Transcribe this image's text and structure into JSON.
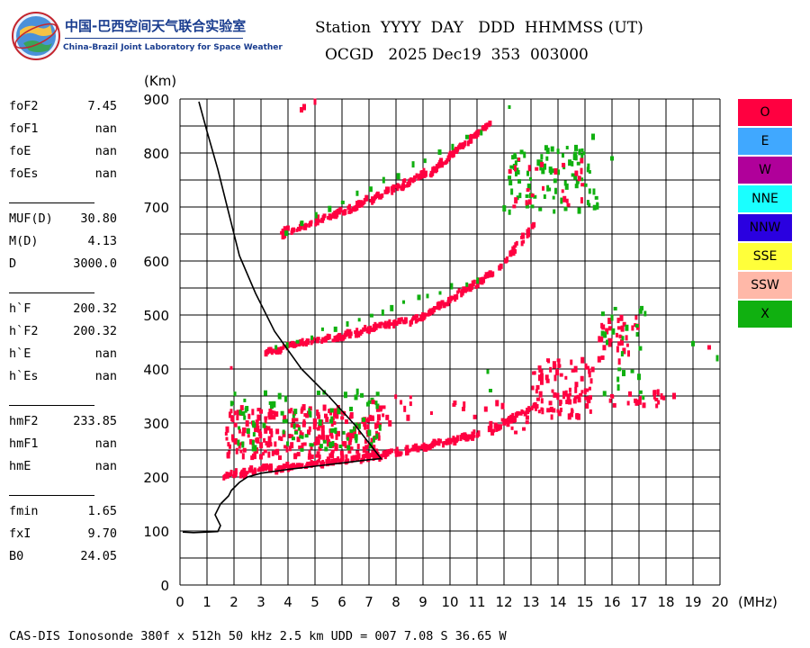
{
  "logo": {
    "cn": "中国-巴西空间天气联合实验室",
    "en": "China-Brazil Joint Laboratory for Space Weather"
  },
  "header": {
    "line1": "Station  YYYY  DAY   DDD  HHMMSS (UT)",
    "line2": "OCGD   2025 Dec19  353  003000"
  },
  "params": [
    {
      "name": "foF2",
      "value": "7.45"
    },
    {
      "name": "foF1",
      "value": "nan"
    },
    {
      "name": "foE",
      "value": "nan"
    },
    {
      "name": "foEs",
      "value": "nan"
    },
    {
      "name": "MUF(D)",
      "value": "30.80"
    },
    {
      "name": "M(D)",
      "value": "4.13"
    },
    {
      "name": "D",
      "value": "3000.0"
    },
    {
      "name": "h`F",
      "value": "200.32"
    },
    {
      "name": "h`F2",
      "value": "200.32"
    },
    {
      "name": "h`E",
      "value": "nan"
    },
    {
      "name": "h`Es",
      "value": "nan"
    },
    {
      "name": "hmF2",
      "value": "233.85"
    },
    {
      "name": "hmF1",
      "value": "nan"
    },
    {
      "name": "hmE",
      "value": "nan"
    },
    {
      "name": "fmin",
      "value": "1.65"
    },
    {
      "name": "fxI",
      "value": "9.70"
    },
    {
      "name": "B0",
      "value": "24.05"
    }
  ],
  "legend": [
    {
      "label": "O",
      "color": "#ff0040"
    },
    {
      "label": "E",
      "color": "#40a8ff"
    },
    {
      "label": "W",
      "color": "#b0009a"
    },
    {
      "label": "NNE",
      "color": "#1affff"
    },
    {
      "label": "NNW",
      "color": "#2a00e0"
    },
    {
      "label": "SSE",
      "color": "#ffff3a"
    },
    {
      "label": "SSW",
      "color": "#ffb8a8"
    },
    {
      "label": "X",
      "color": "#10b010"
    }
  ],
  "footer": "CAS-DIS Ionosonde 380f x 512h 50 kHz 2.5 km UDD = 007 7.08 S 36.65 W",
  "chart_data": {
    "type": "scatter",
    "xlabel": "(MHz)",
    "ylabel": "(Km)",
    "xlim": [
      0,
      20
    ],
    "ylim": [
      0,
      900
    ],
    "x_ticks": [
      0,
      1,
      2,
      3,
      4,
      5,
      6,
      7,
      8,
      9,
      10,
      11,
      12,
      13,
      14,
      15,
      16,
      17,
      18,
      19,
      20
    ],
    "y_ticks": [
      0,
      100,
      200,
      300,
      400,
      500,
      600,
      700,
      800,
      900
    ],
    "grid": true,
    "legend_placement": "right",
    "o_color": "#ff0040",
    "x_color": "#10b010",
    "profile_curve": [
      [
        0.1,
        98
      ],
      [
        0.5,
        97
      ],
      [
        1.0,
        98
      ],
      [
        1.4,
        99
      ],
      [
        1.5,
        110
      ],
      [
        1.3,
        130
      ],
      [
        1.5,
        150
      ],
      [
        1.8,
        165
      ],
      [
        1.9,
        175
      ],
      [
        2.0,
        180
      ],
      [
        2.2,
        190
      ],
      [
        2.5,
        200
      ],
      [
        3.0,
        207
      ],
      [
        4.0,
        214
      ],
      [
        5.0,
        220
      ],
      [
        6.0,
        226
      ],
      [
        7.0,
        232
      ],
      [
        7.45,
        234
      ],
      [
        7.2,
        250
      ],
      [
        6.5,
        295
      ],
      [
        5.5,
        350
      ],
      [
        4.5,
        400
      ],
      [
        3.5,
        470
      ],
      [
        2.8,
        540
      ],
      [
        2.2,
        610
      ],
      [
        1.8,
        690
      ],
      [
        1.4,
        770
      ],
      [
        1.0,
        840
      ],
      [
        0.7,
        895
      ]
    ],
    "traces": [
      {
        "mode": "O",
        "x_from": 1.6,
        "x_to": 7.5,
        "y_from": 202,
        "y_to": 238,
        "count": 60
      },
      {
        "mode": "O",
        "x_from": 7.5,
        "x_to": 11.0,
        "y_from": 238,
        "y_to": 278,
        "count": 40
      },
      {
        "mode": "O",
        "x_from": 11.5,
        "x_to": 13.2,
        "y_from": 285,
        "y_to": 330,
        "count": 20
      },
      {
        "mode": "O",
        "x_from": 3.2,
        "x_to": 6.0,
        "y_from": 432,
        "y_to": 460,
        "count": 30
      },
      {
        "mode": "O",
        "x_from": 6.0,
        "x_to": 9.0,
        "y_from": 460,
        "y_to": 495,
        "count": 35
      },
      {
        "mode": "O",
        "x_from": 9.0,
        "x_to": 11.5,
        "y_from": 495,
        "y_to": 575,
        "count": 35
      },
      {
        "mode": "O",
        "x_from": 11.9,
        "x_to": 13.0,
        "y_from": 590,
        "y_to": 660,
        "count": 12
      },
      {
        "mode": "O",
        "x_from": 3.7,
        "x_to": 6.5,
        "y_from": 648,
        "y_to": 700,
        "count": 30
      },
      {
        "mode": "O",
        "x_from": 6.5,
        "x_to": 9.3,
        "y_from": 700,
        "y_to": 765,
        "count": 35
      },
      {
        "mode": "O",
        "x_from": 9.3,
        "x_to": 11.4,
        "y_from": 765,
        "y_to": 850,
        "count": 30
      },
      {
        "mode": "X",
        "x_from": 3.5,
        "x_to": 11.0,
        "y_from": 440,
        "y_to": 565,
        "count": 18
      },
      {
        "mode": "X",
        "x_from": 4.0,
        "x_to": 11.2,
        "y_from": 655,
        "y_to": 840,
        "count": 15
      }
    ],
    "clusters": [
      {
        "mode": "O",
        "x": [
          1.7,
          7.5
        ],
        "y": [
          235,
          330
        ],
        "count": 260
      },
      {
        "mode": "X",
        "x": [
          1.7,
          7.5
        ],
        "y": [
          250,
          360
        ],
        "count": 90
      },
      {
        "mode": "O",
        "x": [
          13.0,
          15.3
        ],
        "y": [
          310,
          420
        ],
        "count": 90
      },
      {
        "mode": "O",
        "x": [
          15.5,
          17.0
        ],
        "y": [
          410,
          500
        ],
        "count": 35
      },
      {
        "mode": "X",
        "x": [
          12.0,
          15.5
        ],
        "y": [
          690,
          810
        ],
        "count": 90
      },
      {
        "mode": "O",
        "x": [
          12.2,
          15.0
        ],
        "y": [
          700,
          790
        ],
        "count": 25
      },
      {
        "mode": "O",
        "x": [
          7.0,
          13.0
        ],
        "y": [
          270,
          350
        ],
        "count": 30
      },
      {
        "mode": "O",
        "x": [
          15.8,
          18.0
        ],
        "y": [
          330,
          360
        ],
        "count": 20
      },
      {
        "mode": "X",
        "x": [
          15.6,
          17.3
        ],
        "y": [
          330,
          520
        ],
        "count": 25
      }
    ],
    "isolated_points": [
      {
        "mode": "O",
        "x": 4.5,
        "y": 880
      },
      {
        "mode": "O",
        "x": 4.6,
        "y": 885
      },
      {
        "mode": "O",
        "x": 5.0,
        "y": 895
      },
      {
        "mode": "X",
        "x": 12.2,
        "y": 885
      },
      {
        "mode": "O",
        "x": 1.9,
        "y": 402
      },
      {
        "mode": "X",
        "x": 19.9,
        "y": 420
      },
      {
        "mode": "X",
        "x": 19.0,
        "y": 447
      },
      {
        "mode": "O",
        "x": 19.6,
        "y": 440
      },
      {
        "mode": "X",
        "x": 15.3,
        "y": 830
      },
      {
        "mode": "X",
        "x": 16.0,
        "y": 790
      },
      {
        "mode": "O",
        "x": 18.3,
        "y": 350
      },
      {
        "mode": "X",
        "x": 11.4,
        "y": 395
      },
      {
        "mode": "X",
        "x": 11.5,
        "y": 360
      }
    ]
  }
}
